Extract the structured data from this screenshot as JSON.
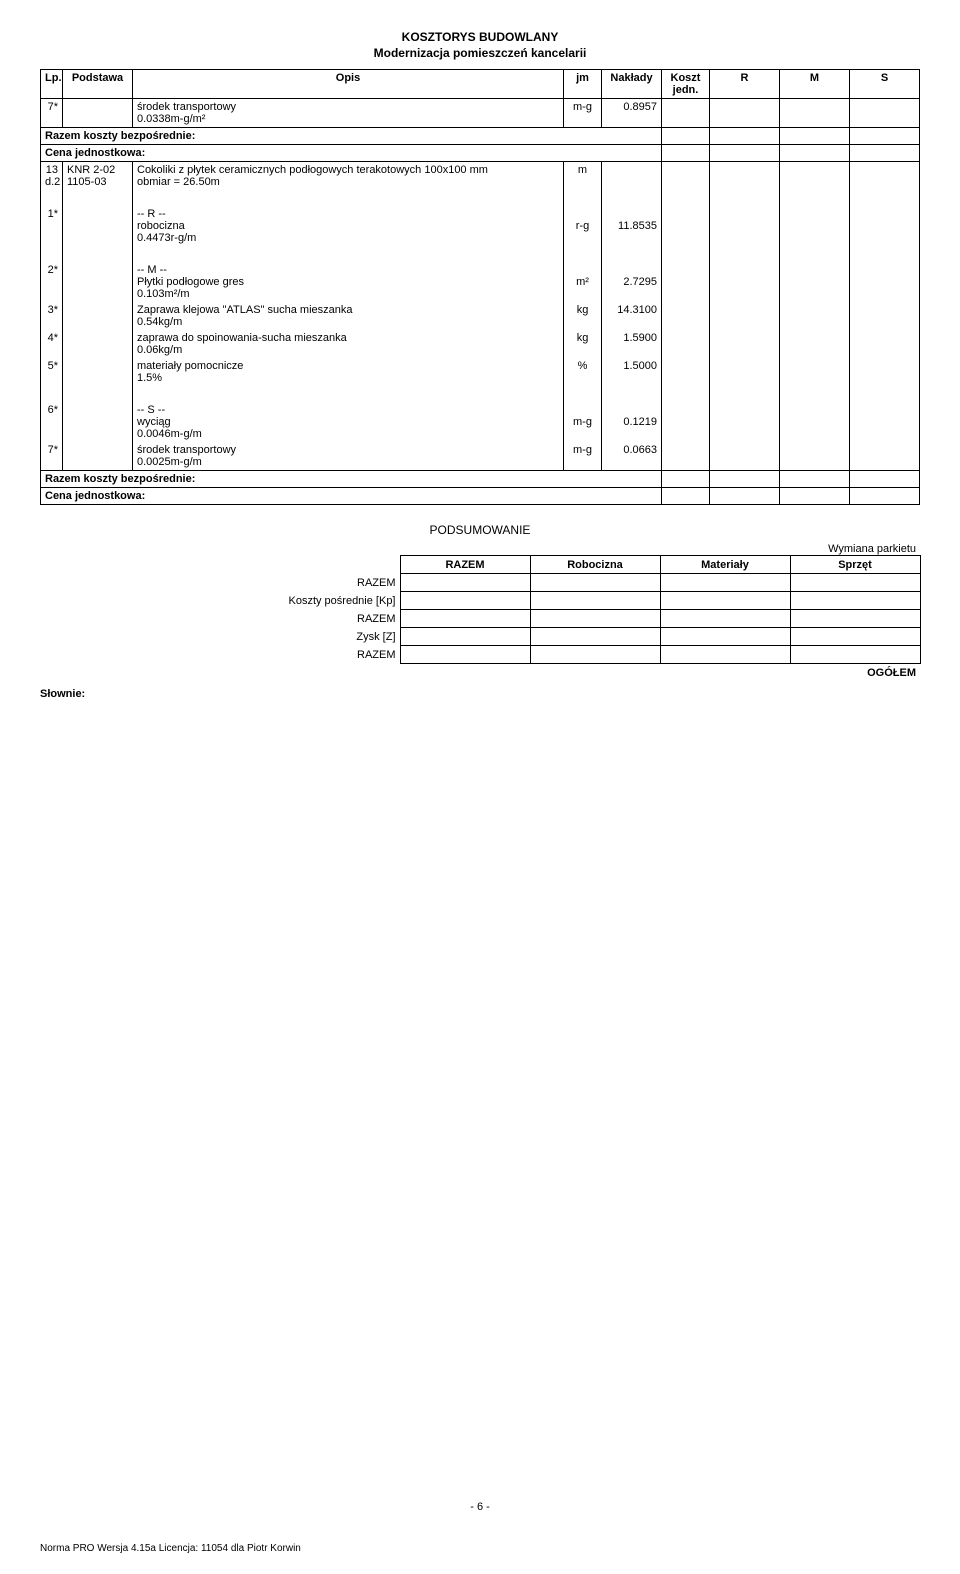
{
  "doc": {
    "title_line1": "KOSZTORYS BUDOWLANY",
    "title_line2": "Modernizacja pomieszczeń kancelarii"
  },
  "header": {
    "lp": "Lp.",
    "podstawa": "Podstawa",
    "opis": "Opis",
    "jm": "jm",
    "naklady": "Nakłady",
    "koszt": "Koszt jedn.",
    "r": "R",
    "m": "M",
    "s": "S"
  },
  "rows": [
    {
      "lp": "7*",
      "pod": "",
      "opis": "środek transportowy\n0.0338m-g/m²",
      "jm": "m-g",
      "nak": "0.8957"
    },
    {
      "span": true,
      "bold": true,
      "text": "Razem koszty bezpośrednie:"
    },
    {
      "span": true,
      "bold": true,
      "text": "Cena jednostkowa:"
    },
    {
      "lp": "13\nd.2",
      "pod": "KNR 2-02\n1105-03",
      "opis": "Cokoliki z płytek ceramicznych podłogowych terakotowych 100x100 mm\nobmiar  = 26.50m",
      "jm": "m",
      "nak": ""
    },
    {
      "lp": "",
      "pod": "",
      "opis": "",
      "jm": "",
      "nak": "",
      "gap": true
    },
    {
      "lp": "1*",
      "pod": "",
      "opis": "-- R --\nrobocizna\n0.4473r-g/m",
      "jm": "r-g",
      "nak": "11.8535"
    },
    {
      "lp": "",
      "pod": "",
      "opis": "",
      "jm": "",
      "nak": "",
      "gap": true
    },
    {
      "lp": "2*",
      "pod": "",
      "opis": "-- M --\nPłytki podłogowe gres\n0.103m²/m",
      "jm": "m²",
      "nak": "2.7295"
    },
    {
      "lp": "3*",
      "pod": "",
      "opis": "Zaprawa klejowa \"ATLAS\" sucha mieszanka\n0.54kg/m",
      "jm": "kg",
      "nak": "14.3100"
    },
    {
      "lp": "4*",
      "pod": "",
      "opis": "zaprawa do spoinowania-sucha mieszanka\n0.06kg/m",
      "jm": "kg",
      "nak": "1.5900"
    },
    {
      "lp": "5*",
      "pod": "",
      "opis": "materiały pomocnicze\n1.5%",
      "jm": "%",
      "nak": "1.5000"
    },
    {
      "lp": "",
      "pod": "",
      "opis": "",
      "jm": "",
      "nak": "",
      "gap": true
    },
    {
      "lp": "6*",
      "pod": "",
      "opis": "-- S --\nwyciąg\n0.0046m-g/m",
      "jm": "m-g",
      "nak": "0.1219"
    },
    {
      "lp": "7*",
      "pod": "",
      "opis": "środek transportowy\n0.0025m-g/m",
      "jm": "m-g",
      "nak": "0.0663"
    },
    {
      "span": true,
      "bold": true,
      "text": "Razem koszty bezpośrednie:"
    },
    {
      "span": true,
      "bold": true,
      "text": "Cena jednostkowa:"
    }
  ],
  "summary": {
    "heading": "PODSUMOWANIE",
    "right_caption": "Wymiana parkietu",
    "cols": {
      "razem": "RAZEM",
      "rob": "Robocizna",
      "mat": "Materiały",
      "spr": "Sprzęt"
    },
    "left_rows": [
      "RAZEM",
      "Koszty pośrednie [Kp]",
      "RAZEM",
      "Zysk [Z]",
      "RAZEM"
    ],
    "ogol": "OGÓŁEM",
    "slownie": "Słownie:"
  },
  "footer": {
    "page": "- 6 -",
    "license": "Norma PRO Wersja 4.15a Licencja: 11054 dla Piotr Korwin"
  }
}
